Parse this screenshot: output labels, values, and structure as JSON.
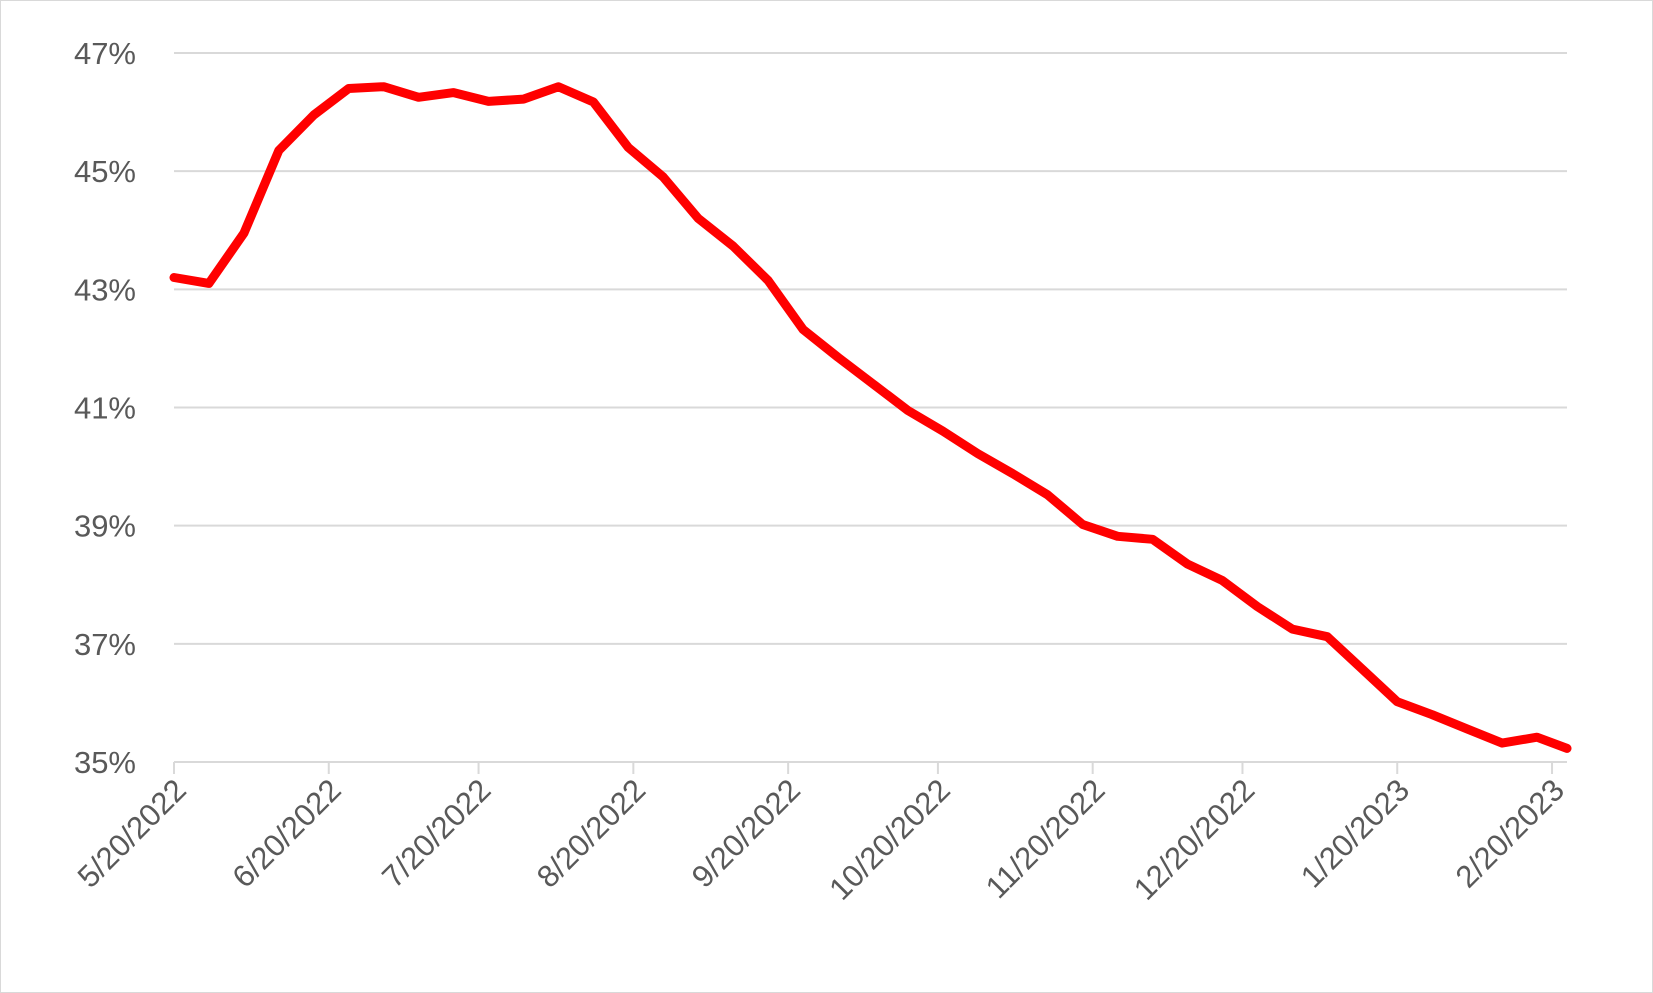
{
  "chart_data": {
    "type": "line",
    "title": "",
    "xlabel": "",
    "ylabel": "",
    "ylim": [
      35,
      47
    ],
    "y_ticks": [
      "35%",
      "37%",
      "39%",
      "41%",
      "43%",
      "45%",
      "47%"
    ],
    "y_tick_values": [
      35,
      37,
      39,
      41,
      43,
      45,
      47
    ],
    "x_ticks": [
      "5/20/2022",
      "6/20/2022",
      "7/20/2022",
      "8/20/2022",
      "9/20/2022",
      "10/20/2022",
      "11/20/2022",
      "12/20/2022",
      "1/20/2023",
      "2/20/2023"
    ],
    "x_tick_dates": [
      "2022-05-20",
      "2022-06-20",
      "2022-07-20",
      "2022-08-20",
      "2022-09-20",
      "2022-10-20",
      "2022-11-20",
      "2022-12-20",
      "2023-01-20",
      "2023-02-20"
    ],
    "xlim": [
      "2022-05-20",
      "2023-02-23"
    ],
    "grid": true,
    "legend": "none",
    "line_color": "#ff0000",
    "series": [
      {
        "x": [
          "2022-05-20",
          "2022-05-27",
          "2022-06-03",
          "2022-06-10",
          "2022-06-17",
          "2022-06-24",
          "2022-07-01",
          "2022-07-08",
          "2022-07-15",
          "2022-07-22",
          "2022-07-29",
          "2022-08-05",
          "2022-08-12",
          "2022-08-19",
          "2022-08-26",
          "2022-09-02",
          "2022-09-09",
          "2022-09-16",
          "2022-09-23",
          "2022-09-30",
          "2022-10-07",
          "2022-10-14",
          "2022-10-21",
          "2022-10-28",
          "2022-11-04",
          "2022-11-11",
          "2022-11-18",
          "2022-11-25",
          "2022-12-02",
          "2022-12-09",
          "2022-12-16",
          "2022-12-23",
          "2022-12-30",
          "2023-01-06",
          "2023-01-13",
          "2023-01-20",
          "2023-01-27",
          "2023-02-03",
          "2023-02-10",
          "2023-02-17",
          "2023-02-23"
        ],
        "y": [
          43.2,
          43.1,
          43.95,
          45.35,
          45.95,
          46.4,
          46.43,
          46.25,
          46.33,
          46.18,
          46.22,
          46.43,
          46.17,
          45.4,
          44.9,
          44.2,
          43.73,
          43.15,
          42.32,
          41.85,
          41.4,
          40.95,
          40.6,
          40.22,
          39.88,
          39.52,
          39.02,
          38.82,
          38.77,
          38.35,
          38.07,
          37.63,
          37.25,
          37.12,
          36.57,
          36.02,
          35.8,
          35.56,
          35.32,
          35.42,
          35.23
        ]
      }
    ]
  }
}
